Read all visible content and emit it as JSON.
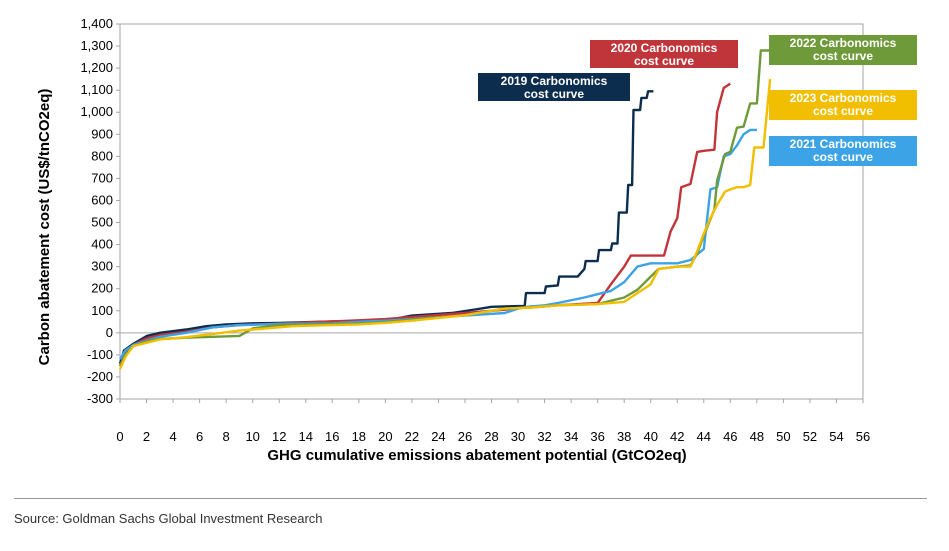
{
  "chart_data": {
    "type": "line",
    "title": "",
    "xlabel": "GHG cumulative emissions abatement potential (GtCO2eq)",
    "ylabel": "Carbon abatement cost (US$/tnCO2eq)",
    "xlim": [
      0,
      56
    ],
    "ylim": [
      -300,
      1400
    ],
    "x_ticks": [
      0,
      2,
      4,
      6,
      8,
      10,
      12,
      14,
      16,
      18,
      20,
      22,
      24,
      26,
      28,
      30,
      32,
      34,
      36,
      38,
      40,
      42,
      44,
      46,
      48,
      50,
      52,
      54,
      56
    ],
    "y_ticks": [
      -300,
      -200,
      -100,
      0,
      100,
      200,
      300,
      400,
      500,
      600,
      700,
      800,
      900,
      1000,
      1100,
      1200,
      1300,
      1400
    ],
    "grid": false,
    "series": [
      {
        "name": "2019 Carbonomics cost curve",
        "color": "#0c2d4e",
        "points": [
          [
            0,
            -140
          ],
          [
            0.3,
            -80
          ],
          [
            1,
            -50
          ],
          [
            2,
            -15
          ],
          [
            3,
            0
          ],
          [
            5,
            15
          ],
          [
            6.5,
            30
          ],
          [
            8,
            38
          ],
          [
            10,
            43
          ],
          [
            12,
            45
          ],
          [
            14,
            48
          ],
          [
            16,
            52
          ],
          [
            20,
            55
          ],
          [
            22,
            78
          ],
          [
            25,
            90
          ],
          [
            27,
            108
          ],
          [
            28,
            118
          ],
          [
            30.5,
            122
          ],
          [
            30.6,
            180
          ],
          [
            32,
            180
          ],
          [
            32.1,
            210
          ],
          [
            33,
            215
          ],
          [
            33.1,
            255
          ],
          [
            34.5,
            255
          ],
          [
            35,
            290
          ],
          [
            35.1,
            325
          ],
          [
            36,
            325
          ],
          [
            36.1,
            375
          ],
          [
            37,
            375
          ],
          [
            37.1,
            405
          ],
          [
            37.5,
            405
          ],
          [
            37.6,
            545
          ],
          [
            38.2,
            545
          ],
          [
            38.3,
            670
          ],
          [
            38.6,
            670
          ],
          [
            38.7,
            1010
          ],
          [
            39.2,
            1010
          ],
          [
            39.3,
            1065
          ],
          [
            39.7,
            1065
          ],
          [
            39.8,
            1095
          ],
          [
            40.2,
            1095
          ]
        ]
      },
      {
        "name": "2020 Carbonomics cost curve",
        "color": "#c0353a",
        "points": [
          [
            0,
            -150
          ],
          [
            0.4,
            -90
          ],
          [
            1,
            -55
          ],
          [
            2,
            -25
          ],
          [
            3,
            -10
          ],
          [
            5,
            5
          ],
          [
            7,
            25
          ],
          [
            9,
            35
          ],
          [
            12,
            42
          ],
          [
            16,
            52
          ],
          [
            18,
            57
          ],
          [
            20,
            62
          ],
          [
            22,
            72
          ],
          [
            26,
            90
          ],
          [
            29,
            105
          ],
          [
            31,
            120
          ],
          [
            33,
            125
          ],
          [
            36,
            135
          ],
          [
            37,
            220
          ],
          [
            38,
            300
          ],
          [
            38.5,
            350
          ],
          [
            40,
            350
          ],
          [
            41,
            350
          ],
          [
            41.5,
            460
          ],
          [
            42,
            520
          ],
          [
            42.3,
            660
          ],
          [
            43,
            675
          ],
          [
            43.5,
            820
          ],
          [
            44,
            825
          ],
          [
            44.8,
            830
          ],
          [
            45,
            1000
          ],
          [
            45.5,
            1110
          ],
          [
            46,
            1130
          ]
        ]
      },
      {
        "name": "2021 Carbonomics cost curve",
        "color": "#3ba3e6",
        "points": [
          [
            0,
            -120
          ],
          [
            0.4,
            -80
          ],
          [
            1,
            -55
          ],
          [
            2,
            -35
          ],
          [
            3,
            -18
          ],
          [
            5,
            0
          ],
          [
            7,
            25
          ],
          [
            9,
            35
          ],
          [
            12,
            40
          ],
          [
            16,
            43
          ],
          [
            18,
            50
          ],
          [
            20,
            55
          ],
          [
            22,
            62
          ],
          [
            26,
            78
          ],
          [
            29,
            90
          ],
          [
            30,
            110
          ],
          [
            31,
            120
          ],
          [
            32,
            125
          ],
          [
            33,
            135
          ],
          [
            35,
            160
          ],
          [
            36,
            175
          ],
          [
            37,
            190
          ],
          [
            38,
            230
          ],
          [
            39,
            300
          ],
          [
            40,
            315
          ],
          [
            42,
            315
          ],
          [
            43,
            330
          ],
          [
            44,
            380
          ],
          [
            44.5,
            650
          ],
          [
            45,
            660
          ],
          [
            45.5,
            800
          ],
          [
            46,
            810
          ],
          [
            46.5,
            850
          ],
          [
            47,
            900
          ],
          [
            47.5,
            920
          ],
          [
            48,
            920
          ]
        ]
      },
      {
        "name": "2022 Carbonomics cost curve",
        "color": "#6e9a3a",
        "points": [
          [
            0,
            -150
          ],
          [
            0.4,
            -100
          ],
          [
            1,
            -60
          ],
          [
            2,
            -38
          ],
          [
            3,
            -28
          ],
          [
            5,
            -22
          ],
          [
            7,
            -18
          ],
          [
            9,
            -14
          ],
          [
            10,
            20
          ],
          [
            12,
            35
          ],
          [
            16,
            40
          ],
          [
            18,
            42
          ],
          [
            20,
            48
          ],
          [
            22,
            60
          ],
          [
            26,
            80
          ],
          [
            29,
            110
          ],
          [
            31,
            115
          ],
          [
            33,
            125
          ],
          [
            36,
            130
          ],
          [
            38,
            160
          ],
          [
            39,
            195
          ],
          [
            40,
            255
          ],
          [
            40.6,
            290
          ],
          [
            42,
            300
          ],
          [
            43,
            305
          ],
          [
            43.5,
            360
          ],
          [
            44,
            440
          ],
          [
            44.8,
            560
          ],
          [
            45,
            690
          ],
          [
            45.6,
            810
          ],
          [
            46,
            820
          ],
          [
            46.5,
            930
          ],
          [
            47,
            935
          ],
          [
            47.5,
            1040
          ],
          [
            48,
            1040
          ],
          [
            48.3,
            1280
          ],
          [
            49,
            1280
          ]
        ]
      },
      {
        "name": "2023 Carbonomics cost curve",
        "color": "#f2be00",
        "points": [
          [
            0,
            -165
          ],
          [
            0.4,
            -110
          ],
          [
            1,
            -60
          ],
          [
            2,
            -45
          ],
          [
            3,
            -30
          ],
          [
            5,
            -20
          ],
          [
            7,
            -5
          ],
          [
            9,
            10
          ],
          [
            11,
            20
          ],
          [
            13,
            30
          ],
          [
            16,
            35
          ],
          [
            18,
            38
          ],
          [
            20,
            45
          ],
          [
            22,
            55
          ],
          [
            26,
            80
          ],
          [
            29,
            110
          ],
          [
            31,
            115
          ],
          [
            33,
            125
          ],
          [
            36,
            130
          ],
          [
            38,
            140
          ],
          [
            39,
            180
          ],
          [
            40,
            220
          ],
          [
            40.6,
            290
          ],
          [
            42,
            300
          ],
          [
            43,
            300
          ],
          [
            43.5,
            370
          ],
          [
            44,
            450
          ],
          [
            44.5,
            520
          ],
          [
            45,
            580
          ],
          [
            45.6,
            640
          ],
          [
            46,
            650
          ],
          [
            46.5,
            660
          ],
          [
            47,
            660
          ],
          [
            47.5,
            670
          ],
          [
            47.8,
            840
          ],
          [
            48.5,
            840
          ],
          [
            49,
            1150
          ]
        ]
      }
    ],
    "labels": [
      {
        "series": 0,
        "text": [
          "2019 Carbonomics",
          "cost curve"
        ]
      },
      {
        "series": 1,
        "text": [
          "2020 Carbonomics",
          "cost curve"
        ]
      },
      {
        "series": 3,
        "text": [
          "2022 Carbonomics",
          "cost curve"
        ]
      },
      {
        "series": 4,
        "text": [
          "2023 Carbonomics",
          "cost curve"
        ]
      },
      {
        "series": 2,
        "text": [
          "2021 Carbonomics",
          "cost curve"
        ]
      }
    ]
  },
  "source": "Source: Goldman Sachs Global Investment Research"
}
